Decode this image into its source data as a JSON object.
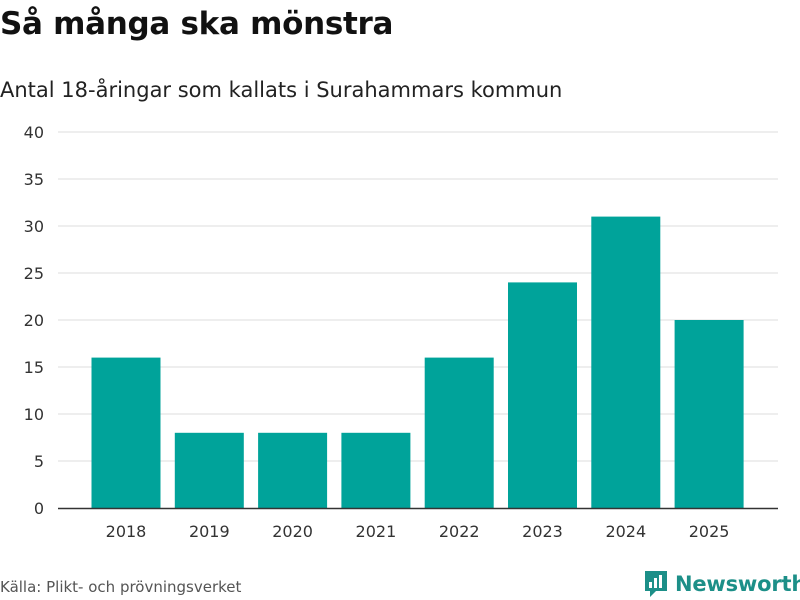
{
  "header": {
    "title": "Så många ska mönstra",
    "subtitle": "Antal 18-åringar som kallats i Surahammars kommun"
  },
  "footer": {
    "source": "Källa: Plikt- och prövningsverket",
    "brand": "Newsworthy"
  },
  "colors": {
    "bar": "#00a39a",
    "brand": "#1c8f88",
    "grid": "#dddddd",
    "axis": "#333333"
  },
  "chart_data": {
    "type": "bar",
    "title": "Så många ska mönstra",
    "subtitle": "Antal 18-åringar som kallats i Surahammars kommun",
    "xlabel": "",
    "ylabel": "",
    "categories": [
      "2018",
      "2019",
      "2020",
      "2021",
      "2022",
      "2023",
      "2024",
      "2025"
    ],
    "values": [
      16,
      8,
      8,
      8,
      16,
      24,
      31,
      20
    ],
    "ylim": [
      0,
      40
    ],
    "yticks": [
      0,
      5,
      10,
      15,
      20,
      25,
      30,
      35,
      40
    ],
    "grid": true,
    "legend": "none"
  }
}
